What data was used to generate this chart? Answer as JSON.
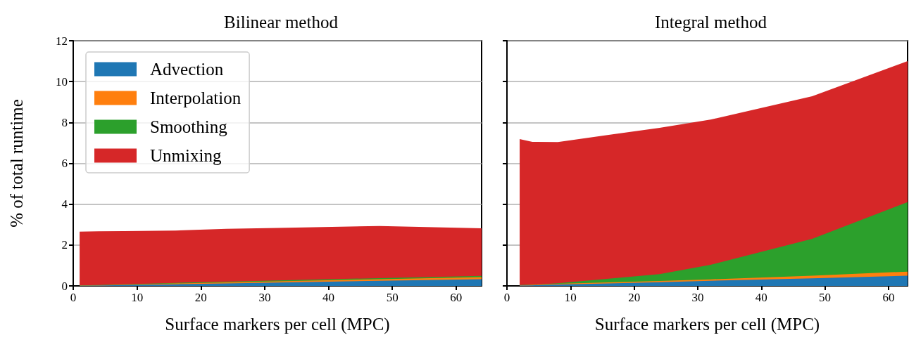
{
  "chart_data": [
    {
      "type": "area",
      "title": "Bilinear method",
      "xlabel": "Surface markers per cell (MPC)",
      "ylabel": "% of total runtime",
      "stacked": true,
      "x": [
        1,
        4,
        8,
        16,
        24,
        32,
        48,
        64
      ],
      "series": [
        {
          "name": "Advection",
          "color": "#1f77b4",
          "values": [
            0.01,
            0.02,
            0.04,
            0.08,
            0.12,
            0.16,
            0.25,
            0.33
          ]
        },
        {
          "name": "Interpolation",
          "color": "#ff7f0e",
          "values": [
            0.01,
            0.01,
            0.02,
            0.04,
            0.05,
            0.06,
            0.08,
            0.1
          ]
        },
        {
          "name": "Smoothing",
          "color": "#2ca02c",
          "values": [
            0.01,
            0.01,
            0.02,
            0.03,
            0.04,
            0.05,
            0.05,
            0.06
          ]
        },
        {
          "name": "Unmixing",
          "color": "#d62728",
          "values": [
            2.63,
            2.63,
            2.6,
            2.56,
            2.58,
            2.57,
            2.55,
            2.33
          ]
        }
      ],
      "xlim": [
        0,
        64
      ],
      "xticks": [
        0,
        10,
        20,
        30,
        40,
        50,
        60
      ],
      "ylim": [
        0,
        12
      ],
      "yticks": [
        0,
        2,
        4,
        6,
        8,
        10,
        12
      ],
      "grid": "y",
      "legend": "top left",
      "marker": "none"
    },
    {
      "type": "area",
      "title": "Integral method",
      "xlabel": "Surface markers per cell (MPC)",
      "stacked": true,
      "x": [
        2,
        4,
        8,
        16,
        24,
        32,
        48,
        63
      ],
      "series": [
        {
          "color": "#1f77b4",
          "values": [
            0.02,
            0.03,
            0.07,
            0.12,
            0.18,
            0.25,
            0.37,
            0.5
          ]
        },
        {
          "color": "#ff7f0e",
          "values": [
            0.01,
            0.02,
            0.03,
            0.05,
            0.06,
            0.07,
            0.13,
            0.2
          ]
        },
        {
          "color": "#2ca02c",
          "values": [
            0.01,
            0.01,
            0.03,
            0.18,
            0.34,
            0.71,
            1.8,
            3.4
          ]
        },
        {
          "color": "#d62728",
          "values": [
            7.15,
            6.99,
            6.91,
            7.04,
            7.16,
            7.11,
            6.98,
            6.9
          ]
        }
      ],
      "xlim": [
        0,
        63
      ],
      "xticks": [
        0,
        10,
        20,
        30,
        40,
        50,
        60
      ],
      "ylim": [
        0,
        12
      ],
      "yticks": [
        0,
        2,
        4,
        6,
        8,
        10,
        12
      ],
      "grid": "y",
      "tick_labels": "x",
      "marker": "none"
    }
  ]
}
